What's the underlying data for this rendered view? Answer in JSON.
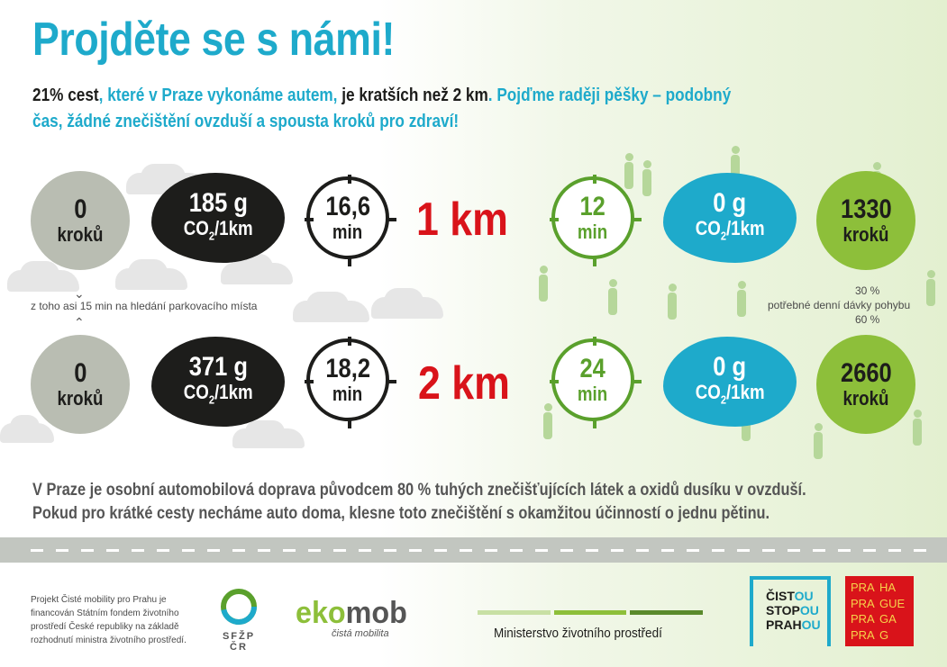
{
  "title": "Projděte se s námi!",
  "intro": {
    "p1": "21% cest",
    "p2": ", které v Praze vykonáme autem, ",
    "p3": "je kratších než 2 km",
    "p4": ". Pojďme raději pěšky – podobný",
    "p5": "čas, žádné znečištění ovzduší a spousta kroků pro zdraví!"
  },
  "row1": {
    "car_steps_value": "0",
    "car_steps_label": "kroků",
    "car_emission_value": "185 g",
    "car_emission_unit": "CO",
    "car_emission_sub": "2",
    "car_emission_tail": "/1km",
    "car_time_value": "16,6",
    "car_time_unit": "min",
    "distance": "1 km",
    "walk_time_value": "12",
    "walk_time_unit": "min",
    "walk_emission_value": "0 g",
    "walk_emission_unit": "CO",
    "walk_emission_sub": "2",
    "walk_emission_tail": "/1km",
    "walk_steps_value": "1330",
    "walk_steps_label": "kroků"
  },
  "row2": {
    "car_steps_value": "0",
    "car_steps_label": "kroků",
    "car_emission_value": "371 g",
    "car_emission_unit": "CO",
    "car_emission_sub": "2",
    "car_emission_tail": "/1km",
    "car_time_value": "18,2",
    "car_time_unit": "min",
    "distance": "2 km",
    "walk_time_value": "24",
    "walk_time_unit": "min",
    "walk_emission_value": "0 g",
    "walk_emission_unit": "CO",
    "walk_emission_sub": "2",
    "walk_emission_tail": "/1km",
    "walk_steps_value": "2660",
    "walk_steps_label": "kroků"
  },
  "parking_note": "z toho asi 15 min na hledání parkovacího místa",
  "daily_note": {
    "top": "30 %",
    "middle": "potřebné denní dávky pohybu",
    "bottom": "60 %"
  },
  "bottom_text": {
    "line1": "V Praze je osobní automobilová doprava původcem 80 % tuhých znečišťujících látek a oxidů dusíku v ovzduší.",
    "line2": "Pokud pro krátké cesty necháme auto doma, klesne toto znečištění s okamžitou účinností o jednu pětinu."
  },
  "footer": {
    "fine_print": [
      "Projekt Čisté mobility pro Prahu je",
      "financován Státním fondem životního",
      "prostředí České republiky na základě",
      "rozhodnutí ministra životního prostředí."
    ],
    "sfzp_label": "SFŽP ČR",
    "ekomob_eko": "eko",
    "ekomob_mob": "mob",
    "ekomob_tagline": "čistá mobilita",
    "ministry": "Ministerstvo životního prostředí",
    "cisto_lines": [
      [
        "ČIST",
        "OU"
      ],
      [
        "STOP",
        "OU"
      ],
      [
        "PRAH",
        "OU"
      ]
    ],
    "praha_grid": [
      "PRA",
      "HA",
      "PRA",
      "GUE",
      "PRA",
      "GA",
      "PRA",
      "G"
    ]
  },
  "colors": {
    "brand_cyan": "#1eaacb",
    "brand_red": "#d9131a",
    "walk_green": "#5aa02c",
    "praha_red": "#d9131a",
    "cisto_blue": "#1eaacb"
  }
}
